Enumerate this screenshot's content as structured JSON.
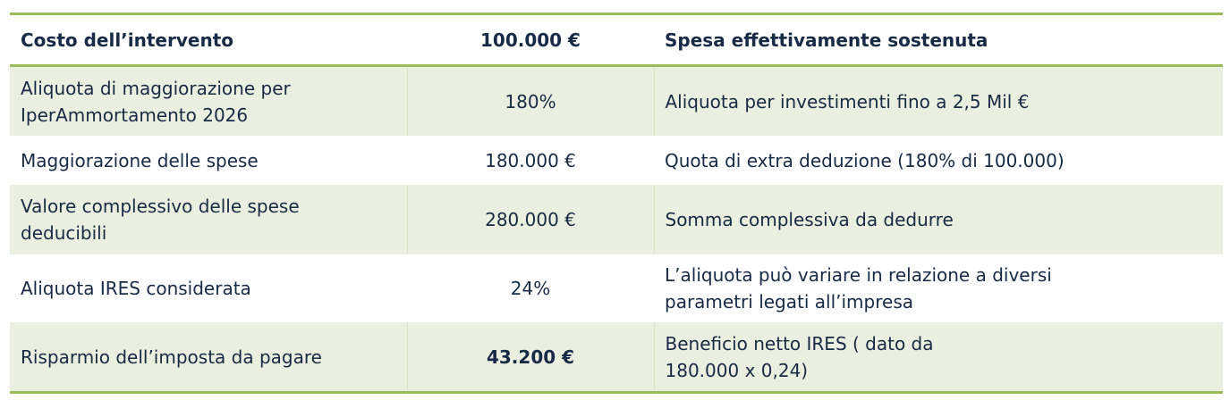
{
  "header": [
    "Costo dell’intervento",
    "100.000 €",
    "Spesa effettivamente sostenuta"
  ],
  "rows": [
    [
      "Aliquota di maggiorazione per IperAmmortamento 2026",
      "180%",
      "Aliquota per investimenti fino a 2,5 Mil €"
    ],
    [
      "Maggiorazione delle spese",
      "180.000 €",
      "Quota di extra deduzione (180% di 100.000)"
    ],
    [
      "Valore complessivo delle spese deducibili",
      "280.000 €",
      "Somma complessiva da dedurre"
    ],
    [
      "Aliquota IRES considerata",
      "24%",
      "L’aliquota può variare in relazione a diversi parametri legati all’impresa"
    ],
    [
      "Risparmio dell’imposta da pagare",
      "43.200 €",
      "Beneficio netto IRES ( dato da 180.000 x 0,24)"
    ]
  ],
  "colors": {
    "rule": "#9bbb59",
    "row_shade": "#eaefdf",
    "text": "#172a46"
  }
}
